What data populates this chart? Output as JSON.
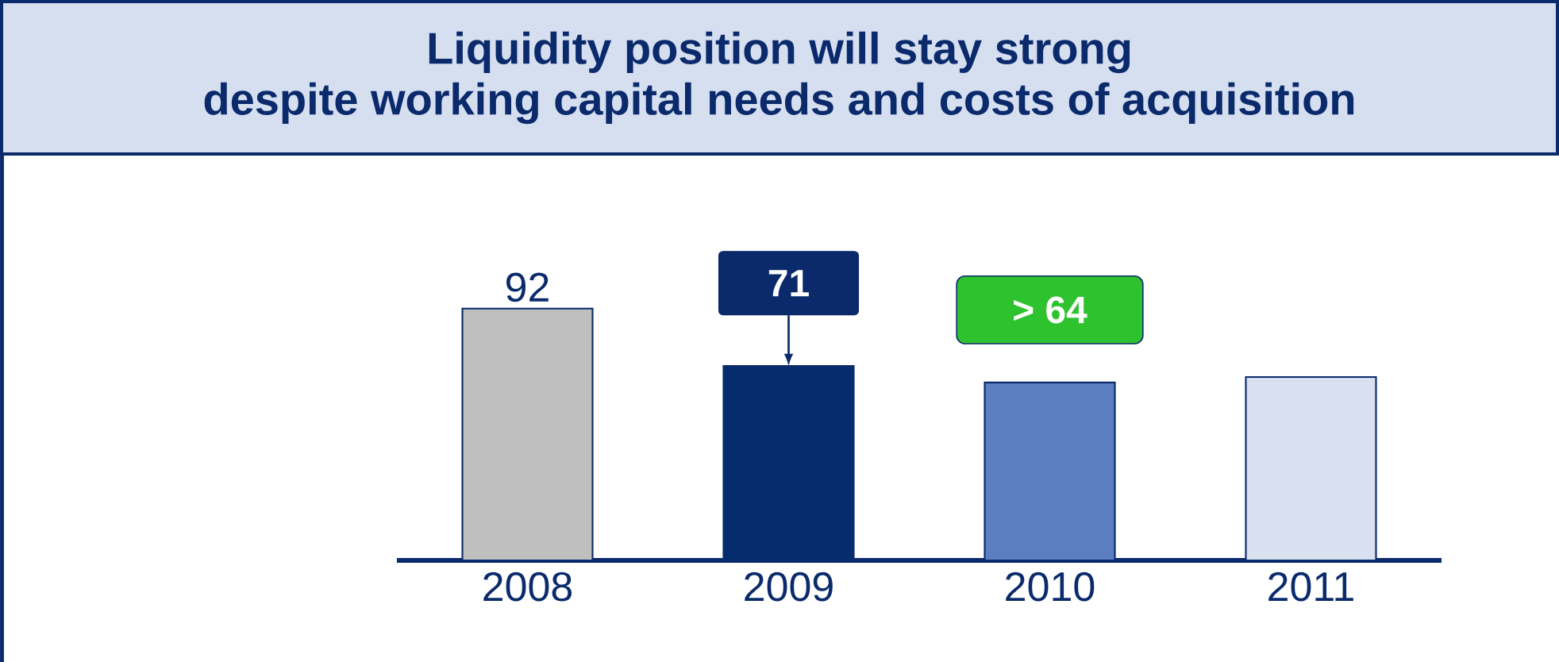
{
  "chart_data": {
    "type": "bar",
    "title": "Liquidity position will stay strong\ndespite working capital needs and costs of acquisition",
    "categories": [
      "2008",
      "2009",
      "2010",
      "2011"
    ],
    "values": [
      92,
      71,
      65,
      67
    ],
    "colors": [
      "#bfbfbf",
      "#052d6e",
      "#5b7fc0",
      "#d9e0ef"
    ],
    "value_labels": [
      "92",
      "71",
      "> 64",
      null
    ]
  }
}
